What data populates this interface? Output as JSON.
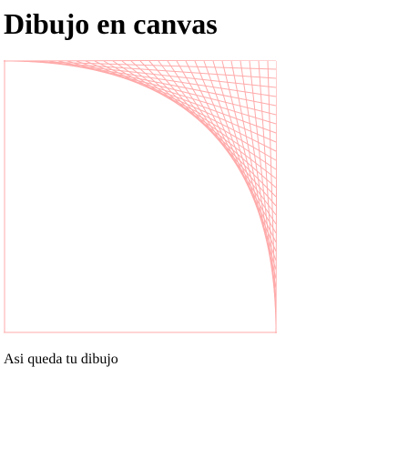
{
  "page": {
    "heading": "Dibujo en canvas",
    "caption": "Asi queda tu dibujo"
  },
  "canvas": {
    "line_color": "#ffaaaa",
    "line_count": 30
  }
}
